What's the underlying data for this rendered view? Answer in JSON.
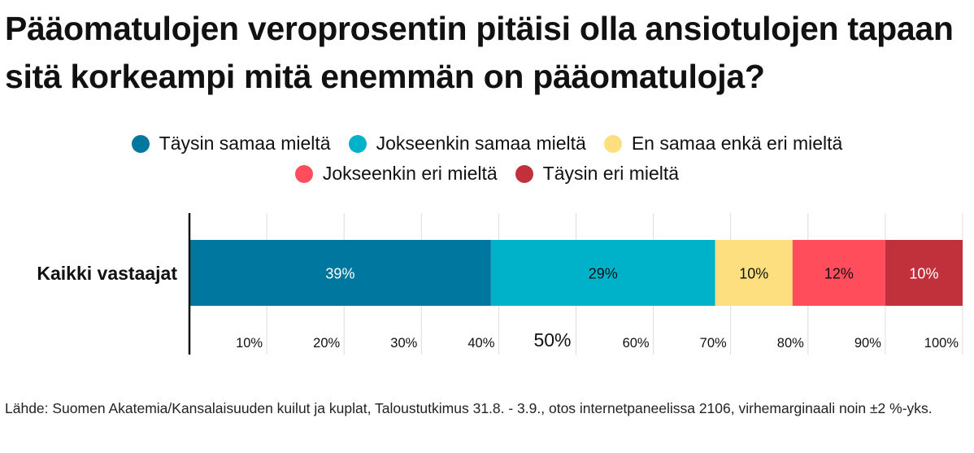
{
  "title": "Pääomatulojen veroprosentin pitäisi olla ansiotulojen tapaan sitä korkeampi mitä enemmän on pääomatuloja?",
  "source": "Lähde: Suomen Akatemia/Kansalaisuuden kuilut ja kuplat, Taloustutkimus 31.8. - 3.9., otos internetpaneelissa 2106, virhemarginaali noin ±2 %-yks.",
  "colors": {
    "taysin_samaa": "#00779e",
    "jokseenkin_samaa": "#00b2c9",
    "en_samaa_enka_eri": "#fddf80",
    "jokseenkin_eri": "#ff4d5c",
    "taysin_eri": "#c1313c"
  },
  "chart_data": {
    "type": "bar",
    "orientation": "horizontal",
    "stacked": true,
    "categories": [
      "Kaikki vastaajat"
    ],
    "series": [
      {
        "name": "Täysin samaa mieltä",
        "values": [
          39
        ],
        "label": "39%",
        "color": "#00779e",
        "label_color": "#ffffff"
      },
      {
        "name": "Jokseenkin samaa mieltä",
        "values": [
          29
        ],
        "label": "29%",
        "color": "#00b2c9",
        "label_color": "#111111"
      },
      {
        "name": "En samaa enkä eri mieltä",
        "values": [
          10
        ],
        "label": "10%",
        "color": "#fddf80",
        "label_color": "#111111"
      },
      {
        "name": "Jokseenkin eri mieltä",
        "values": [
          12
        ],
        "label": "12%",
        "color": "#ff4d5c",
        "label_color": "#111111"
      },
      {
        "name": "Täysin eri mieltä",
        "values": [
          10
        ],
        "label": "10%",
        "color": "#c1313c",
        "label_color": "#ffffff"
      }
    ],
    "xlim": [
      0,
      100
    ],
    "x_ticks": [
      {
        "value": 10,
        "label": "10%"
      },
      {
        "value": 20,
        "label": "20%"
      },
      {
        "value": 30,
        "label": "30%"
      },
      {
        "value": 40,
        "label": "40%"
      },
      {
        "value": 50,
        "label": "50%",
        "emphasis": true
      },
      {
        "value": 60,
        "label": "60%"
      },
      {
        "value": 70,
        "label": "70%"
      },
      {
        "value": 80,
        "label": "80%"
      },
      {
        "value": 90,
        "label": "90%"
      },
      {
        "value": 100,
        "label": "100%"
      }
    ],
    "grid": true,
    "legend_position": "top-center"
  }
}
